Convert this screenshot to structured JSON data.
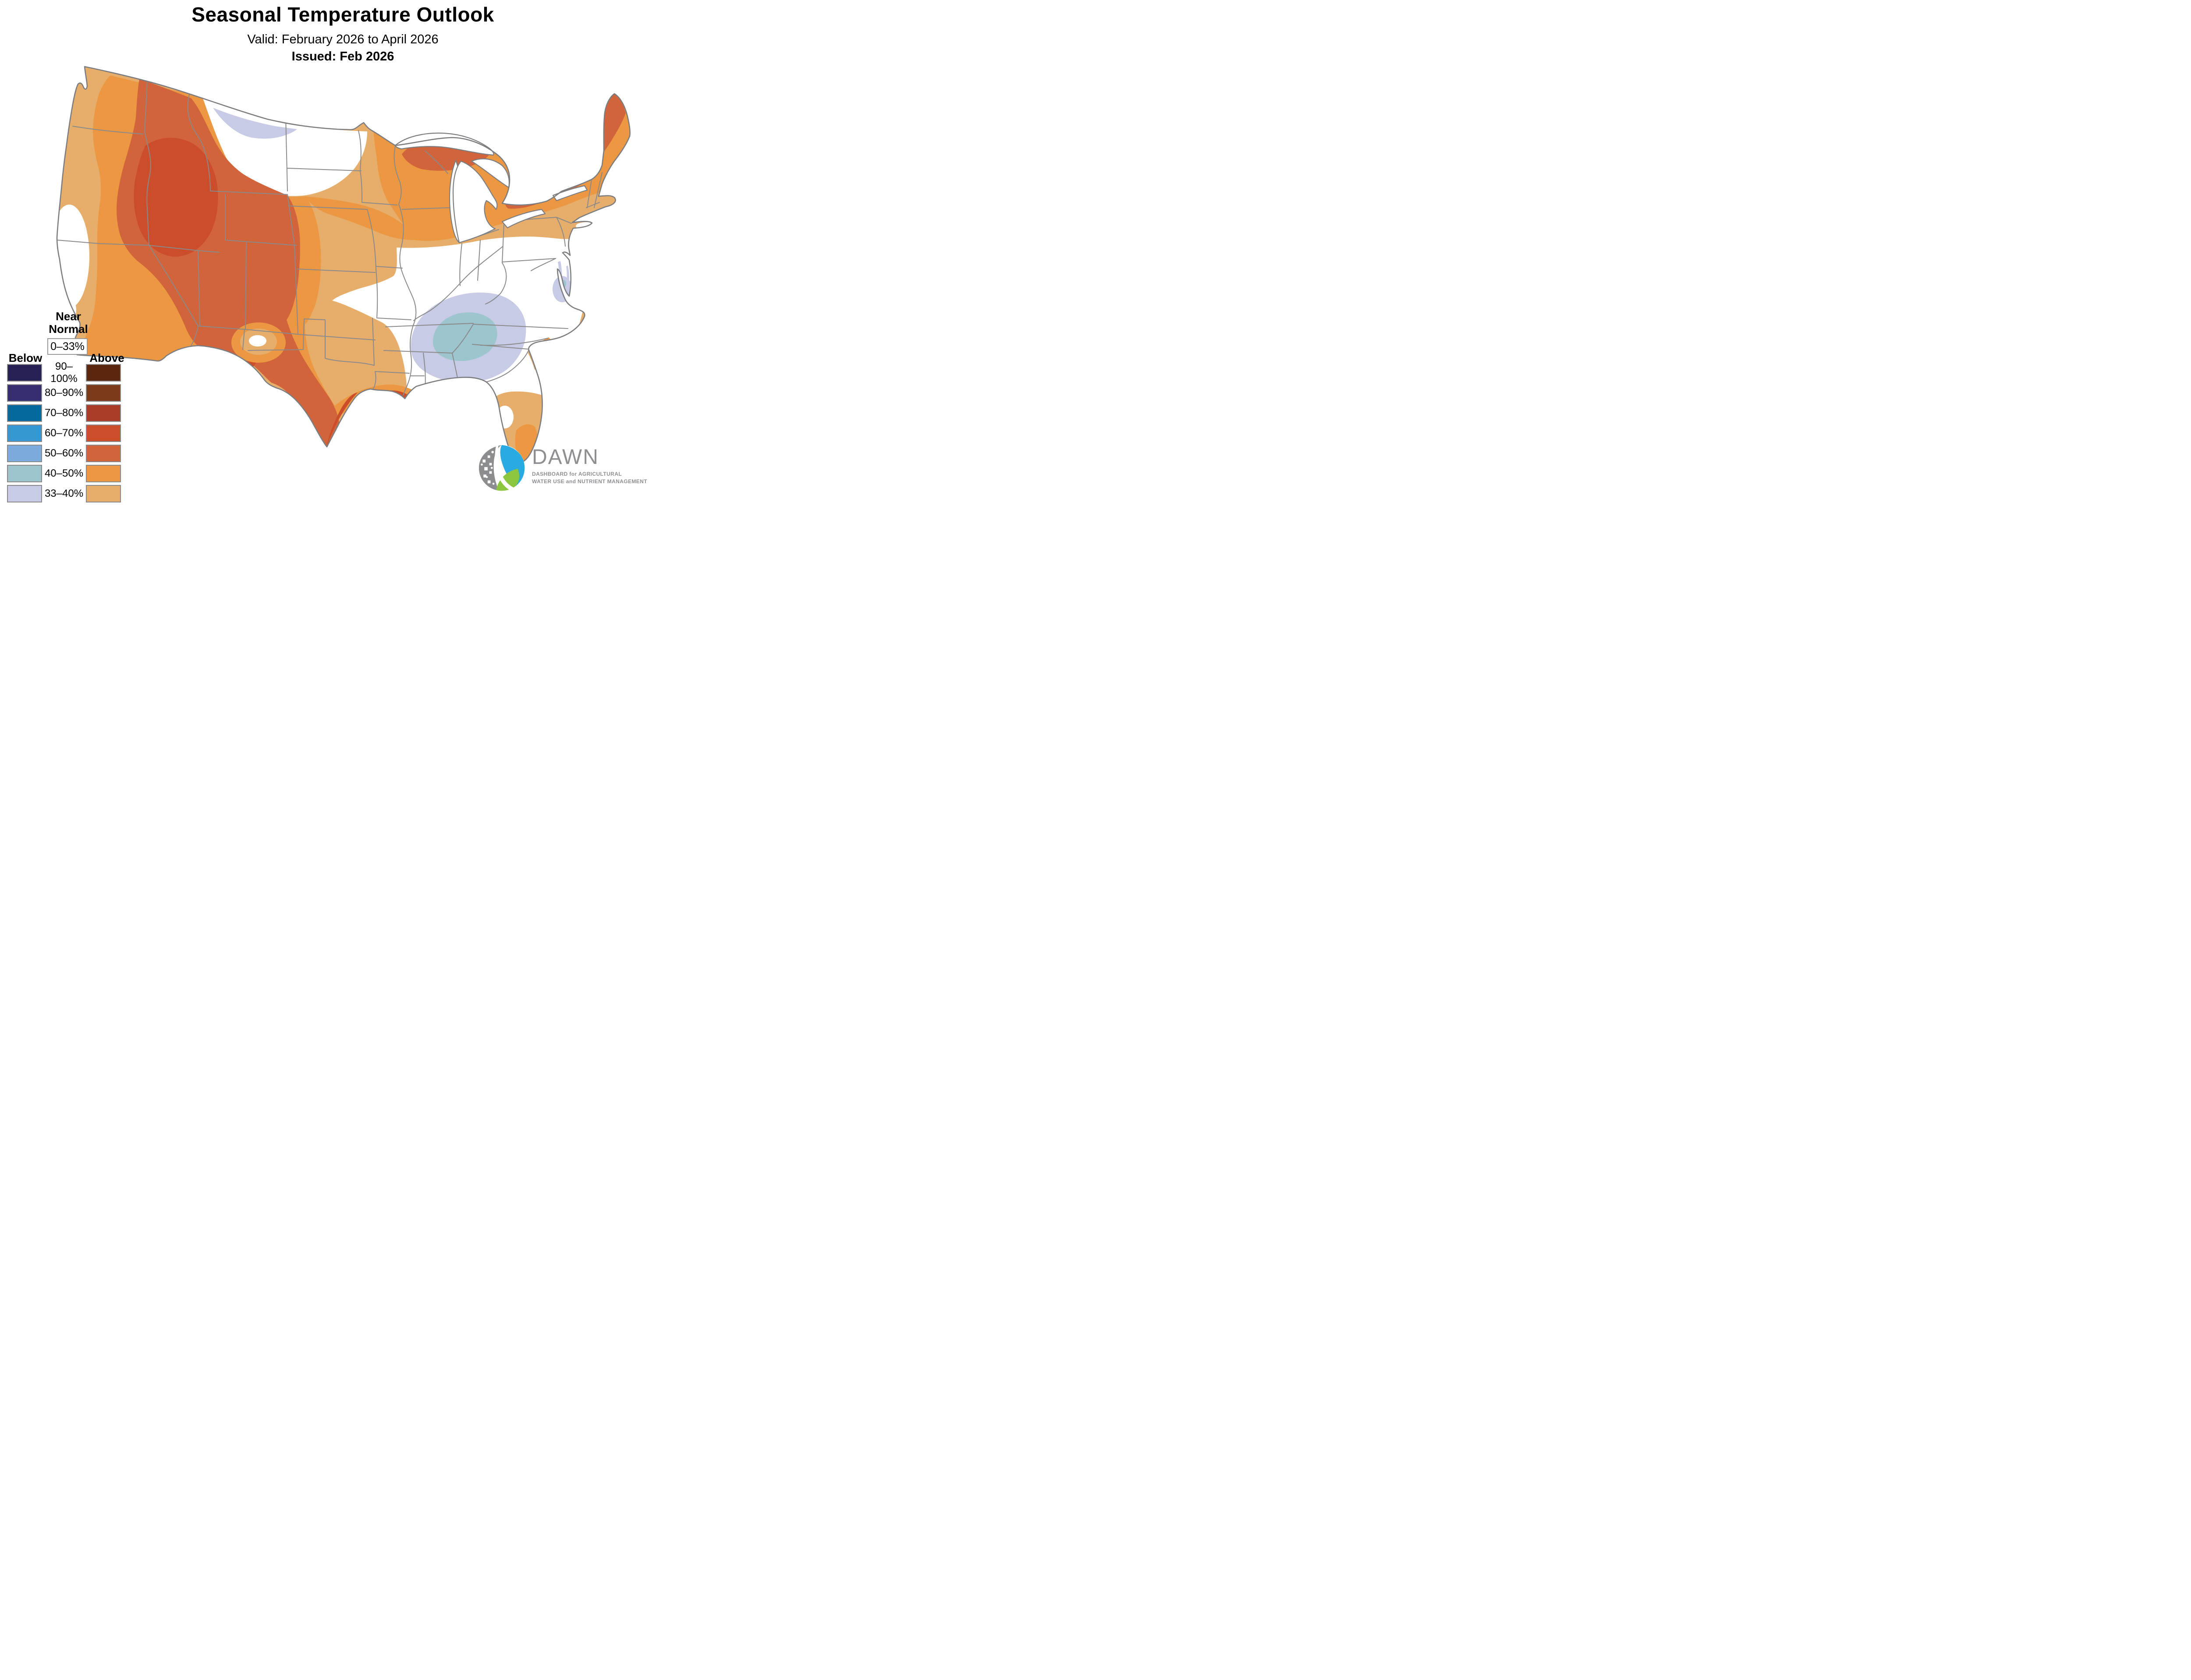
{
  "header": {
    "title": "Seasonal Temperature Outlook",
    "valid": "Valid: February 2026 to April 2026",
    "issued": "Issued: Feb 2026"
  },
  "legend": {
    "near_normal_label": "Near Normal",
    "near_normal_range": "0–33%",
    "below_label": "Below",
    "above_label": "Above",
    "rows": [
      {
        "range": "90–100%",
        "below": "#262155",
        "above": "#5c2510"
      },
      {
        "range": "80–90%",
        "below": "#342e70",
        "above": "#7d3a1b"
      },
      {
        "range": "70–80%",
        "below": "#07689e",
        "above": "#a93a26"
      },
      {
        "range": "60–70%",
        "below": "#3697d3",
        "above": "#cc4d29"
      },
      {
        "range": "50–60%",
        "below": "#7cabde",
        "above": "#d2643c"
      },
      {
        "range": "40–50%",
        "below": "#9dc5cd",
        "above": "#ec9742"
      },
      {
        "range": "33–40%",
        "below": "#c7cbe5",
        "above": "#e7ae6b"
      }
    ]
  },
  "colors": {
    "equal_chances_white": "#ffffff",
    "above_33_40": "#e7ae6b",
    "above_40_50": "#ec9742",
    "above_50_60": "#d2643c",
    "above_60_70": "#cc4d29",
    "above_70_80": "#a93a26",
    "above_80_90": "#7d3a1b",
    "above_90_100": "#5c2510",
    "below_33_40": "#c7cbe5",
    "below_40_50": "#9dc5cd",
    "below_50_60": "#7cabde",
    "below_60_70": "#3697d3",
    "below_70_80": "#07689e",
    "below_80_90": "#342e70",
    "below_90_100": "#262155",
    "state_line": "#8a8a8a",
    "outline": "#7b7d80",
    "logo_gray": "#8b8d90",
    "logo_blue": "#29abe2",
    "logo_green": "#8cc63f"
  },
  "logo": {
    "name": "DAWN",
    "tagline_line1": "DASHBOARD for AGRICULTURAL",
    "tagline_line2": "WATER USE and NUTRIENT MANAGEMENT"
  }
}
